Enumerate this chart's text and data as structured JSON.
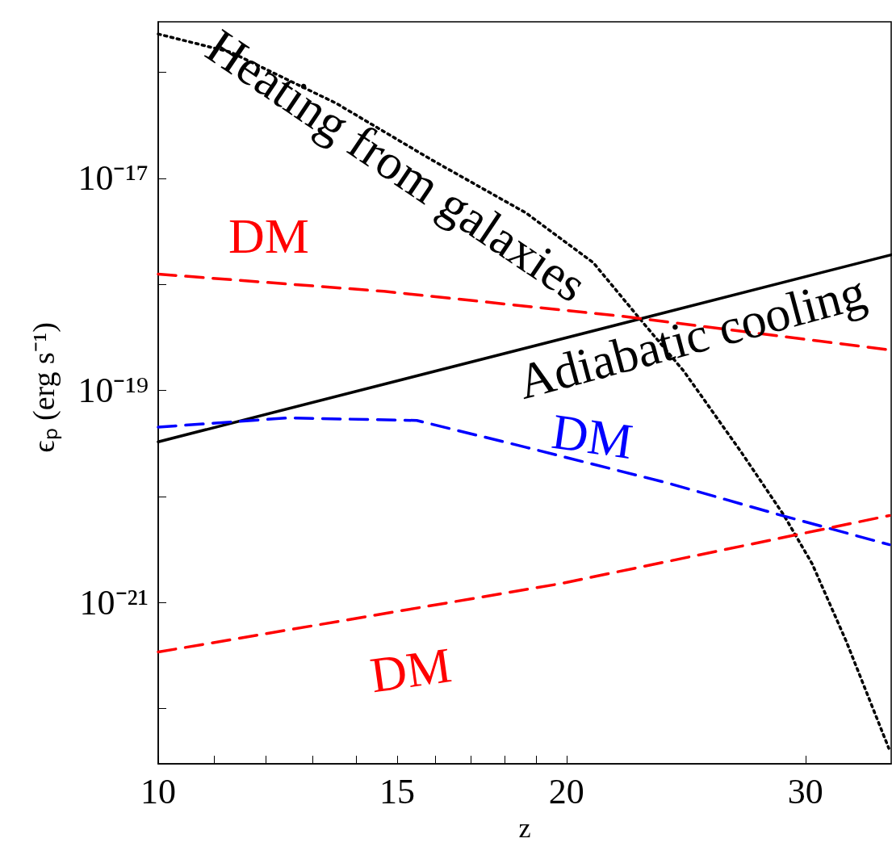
{
  "chart_data": {
    "type": "line",
    "xlabel": "z",
    "ylabel": "ϵₚ  (erg s⁻¹)",
    "log": "xy",
    "grid": false,
    "legend": false,
    "marker": "none",
    "xlim": [
      10,
      34.7
    ],
    "xticks": [
      10,
      {
        "value": 11,
        "label": null
      },
      {
        "value": 12,
        "label": null
      },
      {
        "value": 13,
        "label": null
      },
      {
        "value": 14,
        "label": null
      },
      15,
      {
        "value": 16,
        "label": null
      },
      {
        "value": 17,
        "label": null
      },
      {
        "value": 18,
        "label": null
      },
      {
        "value": 19,
        "label": null
      },
      20,
      30
    ],
    "ylim": [
      3e-23,
      3e-16
    ],
    "yticks": [
      {
        "value": 1e-16,
        "label": null
      },
      {
        "value": 1e-17,
        "label": "10⁻¹⁷"
      },
      {
        "value": 1e-18,
        "label": null
      },
      {
        "value": 1e-19,
        "label": "10⁻¹⁹"
      },
      {
        "value": 1e-20,
        "label": null
      },
      {
        "value": 1e-21,
        "label": "10⁻²¹"
      },
      {
        "value": 1e-22,
        "label": null
      }
    ],
    "series": [
      {
        "name": "Heating from galaxies",
        "color": "#000000",
        "line_style": "dotted",
        "x": [
          10,
          11.31,
          13.53,
          15.9,
          18.68,
          20.93,
          22.69,
          24.42,
          26.91,
          28.93,
          30.35,
          32.15,
          34.56
        ],
        "values": [
          2.3e-16,
          1.55e-16,
          5.1e-17,
          1.5e-17,
          4.7e-18,
          1.6e-18,
          4.6e-19,
          1.5e-19,
          2.6e-20,
          6.6e-21,
          2.3e-21,
          4.3e-22,
          4.2e-23
        ]
      },
      {
        "name": "Adiabatic cooling",
        "color": "#000000",
        "line_style": "solid",
        "x": [
          10,
          34.7
        ],
        "values": [
          3.27e-20,
          1.9e-18
        ]
      },
      {
        "name": "DM",
        "color": "#ff0000",
        "line_style": "dashed",
        "x": [
          10,
          14.67,
          21.98,
          34.7
        ],
        "values": [
          1.25e-18,
          8.6e-19,
          5e-19,
          2.4e-19
        ]
      },
      {
        "name": "DM",
        "color": "#0000ff",
        "line_style": "dashed",
        "x": [
          10,
          12.46,
          15.51,
          18.68,
          23.83,
          28.7,
          34.6
        ],
        "values": [
          4.5e-20,
          5.5e-20,
          5.2e-20,
          2.9e-20,
          1.32e-20,
          6.7e-21,
          3.5e-21
        ]
      },
      {
        "name": "DM",
        "color": "#ff0000",
        "line_style": "dashed",
        "x": [
          10,
          19.78,
          34.6
        ],
        "values": [
          3.4e-22,
          1.5e-21,
          6.6e-21
        ]
      }
    ]
  }
}
